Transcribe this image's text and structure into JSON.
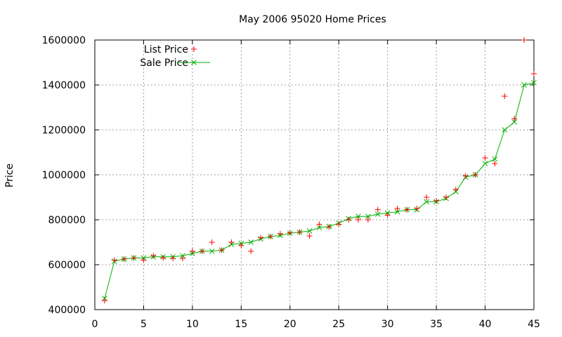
{
  "chart_data": {
    "type": "line",
    "title": "May 2006 95020 Home Prices",
    "xlabel": "",
    "ylabel": "Price",
    "xlim": [
      0,
      45
    ],
    "ylim": [
      400000,
      1600000
    ],
    "xticks": [
      0,
      5,
      10,
      15,
      20,
      25,
      30,
      35,
      40,
      45
    ],
    "yticks": [
      400000,
      600000,
      800000,
      1000000,
      1200000,
      1400000,
      1600000
    ],
    "grid": true,
    "legend_position": "top-left",
    "x": [
      1,
      2,
      3,
      4,
      5,
      6,
      7,
      8,
      9,
      10,
      11,
      12,
      13,
      14,
      15,
      16,
      17,
      18,
      19,
      20,
      21,
      22,
      23,
      24,
      25,
      26,
      27,
      28,
      29,
      30,
      31,
      32,
      33,
      34,
      35,
      36,
      37,
      38,
      39,
      40,
      41,
      42,
      43,
      44,
      45
    ],
    "series": [
      {
        "name": "List Price",
        "style": "points",
        "marker": "+",
        "color": "#ff0000",
        "values": [
          440000,
          620000,
          625000,
          630000,
          620000,
          640000,
          630000,
          628000,
          628000,
          660000,
          660000,
          700000,
          665000,
          700000,
          685000,
          660000,
          720000,
          725000,
          738000,
          742000,
          745000,
          728000,
          780000,
          768000,
          780000,
          800000,
          800000,
          800000,
          845000,
          820000,
          850000,
          845000,
          850000,
          900000,
          885000,
          900000,
          935000,
          995000,
          1000000,
          1075000,
          1050000,
          1350000,
          1250000,
          1600000,
          1450000
        ]
      },
      {
        "name": "Sale Price",
        "style": "linespoints",
        "marker": "x",
        "color": "#00b000",
        "values": [
          450000,
          615000,
          625000,
          630000,
          630000,
          635000,
          635000,
          635000,
          640000,
          650000,
          660000,
          660000,
          665000,
          690000,
          695000,
          700000,
          715000,
          725000,
          730000,
          740000,
          745000,
          750000,
          765000,
          770000,
          785000,
          805000,
          815000,
          815000,
          825000,
          830000,
          835000,
          845000,
          845000,
          880000,
          880000,
          895000,
          925000,
          990000,
          1000000,
          1050000,
          1070000,
          1200000,
          1235000,
          1400000,
          1410000
        ]
      }
    ]
  }
}
